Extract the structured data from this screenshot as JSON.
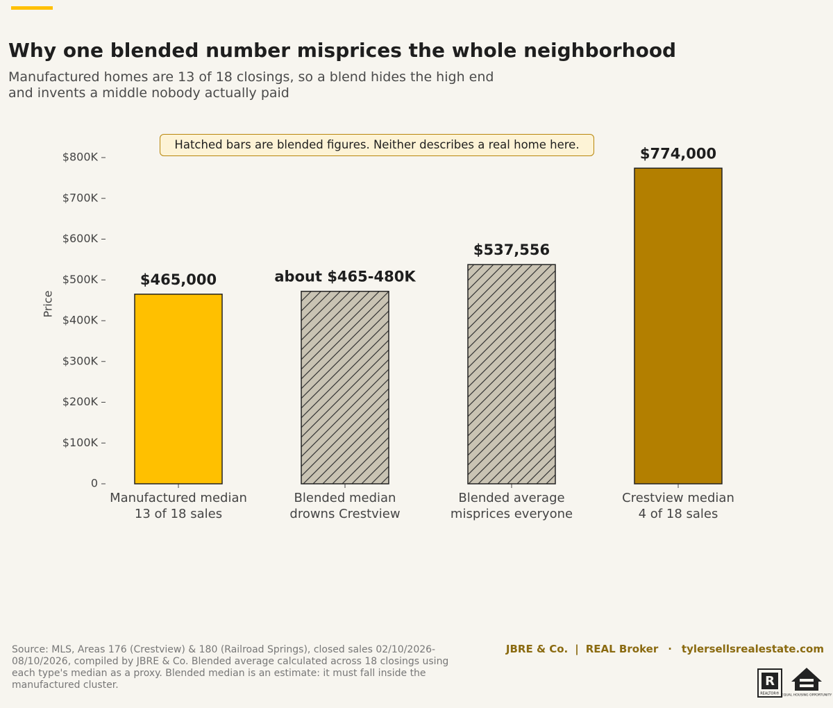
{
  "chart_data": {
    "type": "bar",
    "title": "Why one blended number misprices the whole neighborhood",
    "subtitle": "Manufactured homes are 13 of 18 closings, so a blend hides the high end\nand invents a middle nobody actually paid",
    "annotation": "Hatched bars are blended figures. Neither describes a real home here.",
    "ylabel": "Price",
    "categories": [
      "Manufactured median\n13 of 18 sales",
      "Blended median\ndrowns Crestview",
      "Blended average\nmisprices everyone",
      "Crestview median\n4 of 18 sales"
    ],
    "values": [
      465000,
      472000,
      537556,
      774000
    ],
    "value_labels": [
      "$465,000",
      "about $465-480K",
      "$537,556",
      "$774,000"
    ],
    "colors": [
      "#ffc000",
      "#c9c3b3",
      "#c9c3b3",
      "#b37f00"
    ],
    "hatched": [
      false,
      true,
      true,
      false
    ],
    "ylim": [
      0,
      850000
    ],
    "yticks": [
      0,
      {
        "value": 100000,
        "label": "$100K"
      },
      {
        "value": 200000,
        "label": "$200K"
      },
      {
        "value": 300000,
        "label": "$300K"
      },
      {
        "value": 400000,
        "label": "$400K"
      },
      {
        "value": 500000,
        "label": "$500K"
      },
      {
        "value": 600000,
        "label": "$600K"
      },
      {
        "value": 700000,
        "label": "$700K"
      },
      {
        "value": 800000,
        "label": "$800K"
      }
    ],
    "source": "Source: MLS, Areas 176 (Crestview) & 180 (Railroad Springs), closed sales 02/10/2026-08/10/2026, compiled by JBRE & Co. Blended average calculated across 18 closings using each type's median as a proxy. Blended median is an estimate: it must fall inside the manufactured cluster.",
    "footer": {
      "brand": "JBRE & Co.",
      "separator_1": "|",
      "broker": "REAL Broker",
      "separator_2": "·",
      "website": "tylersellsrealestate.com"
    },
    "logos": {
      "realtor": "REALTOR®",
      "equal_housing": "EQUAL HOUSING OPPORTUNITY"
    }
  }
}
